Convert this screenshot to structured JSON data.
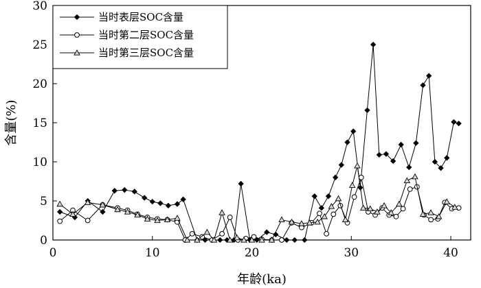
{
  "chart_data": {
    "type": "line",
    "xlabel": "年龄(ka)",
    "ylabel": "含量(%)",
    "xlim": [
      0,
      42
    ],
    "ylim": [
      0,
      30
    ],
    "xticks": [
      0,
      10,
      20,
      30,
      40
    ],
    "yticks": [
      0,
      5,
      10,
      15,
      20,
      25,
      30
    ],
    "legend_position": "top-left",
    "series": [
      {
        "name": "当时表层SOC含量",
        "marker": "filled-diamond",
        "x": [
          0.7,
          2.2,
          3.5,
          5.0,
          6.2,
          7.2,
          8.2,
          9.2,
          10.0,
          10.8,
          11.6,
          12.5,
          13.1,
          14.5,
          15.3,
          16.0,
          16.8,
          17.5,
          18.2,
          18.9,
          19.8,
          20.5,
          21.5,
          22.4,
          23.5,
          24.3,
          25.3,
          26.3,
          27.0,
          27.7,
          28.4,
          29.0,
          29.6,
          30.2,
          30.9,
          31.6,
          32.2,
          32.8,
          33.5,
          34.2,
          35.0,
          35.8,
          36.5,
          37.2,
          37.8,
          38.4,
          39.0,
          39.6,
          40.3,
          40.8
        ],
        "values": [
          3.6,
          2.9,
          5.0,
          3.6,
          6.3,
          6.4,
          6.2,
          5.4,
          4.9,
          4.7,
          4.4,
          4.6,
          5.2,
          0.0,
          0.0,
          0.0,
          0.0,
          0.0,
          0.0,
          7.2,
          0.0,
          0.0,
          1.0,
          0.7,
          0.0,
          0.0,
          0.0,
          5.6,
          4.1,
          5.6,
          8.0,
          9.6,
          12.5,
          13.9,
          6.7,
          16.6,
          25.0,
          10.9,
          11.0,
          10.1,
          12.2,
          9.3,
          12.4,
          19.8,
          21.0,
          10.0,
          9.2,
          10.5,
          15.1,
          14.9
        ]
      },
      {
        "name": "当时第二层SOC含量",
        "marker": "open-circle",
        "x": [
          0.7,
          2.0,
          3.5,
          5.0,
          6.5,
          7.5,
          8.5,
          9.5,
          10.5,
          11.5,
          12.5,
          13.3,
          14.0,
          15.0,
          16.0,
          17.0,
          17.8,
          18.6,
          19.4,
          20.2,
          21.0,
          22.0,
          23.0,
          24.0,
          25.0,
          26.0,
          26.8,
          27.5,
          28.2,
          28.9,
          29.6,
          30.3,
          31.0,
          31.7,
          32.4,
          33.1,
          33.8,
          34.5,
          35.2,
          35.9,
          36.6,
          37.3,
          38.0,
          38.7,
          39.4,
          40.1,
          40.8
        ],
        "values": [
          2.4,
          3.8,
          2.5,
          4.5,
          4.1,
          3.8,
          3.3,
          2.9,
          2.7,
          2.6,
          2.3,
          0.0,
          0.8,
          0.4,
          0.0,
          0.8,
          2.9,
          0.0,
          0.2,
          0.4,
          0.1,
          0.0,
          0.0,
          2.2,
          1.6,
          2.2,
          3.4,
          0.8,
          3.3,
          4.4,
          2.2,
          5.5,
          8.0,
          3.6,
          3.2,
          4.1,
          3.2,
          3.0,
          4.0,
          6.5,
          6.8,
          3.2,
          2.6,
          2.7,
          4.8,
          4.0,
          4.1
        ]
      },
      {
        "name": "当时第三层SOC含量",
        "marker": "open-triangle",
        "x": [
          0.7,
          2.0,
          3.5,
          5.0,
          6.5,
          7.5,
          8.5,
          9.5,
          10.5,
          11.5,
          12.5,
          13.5,
          14.5,
          15.5,
          16.2,
          17.0,
          17.8,
          18.5,
          19.2,
          20.0,
          21.0,
          22.0,
          23.0,
          24.0,
          25.0,
          25.8,
          26.6,
          27.3,
          28.0,
          28.7,
          29.4,
          30.1,
          30.6,
          31.2,
          31.9,
          32.6,
          33.3,
          34.0,
          34.8,
          35.6,
          36.4,
          37.2,
          38.0,
          38.8,
          39.6,
          40.4
        ],
        "values": [
          4.6,
          3.3,
          4.8,
          4.5,
          3.9,
          3.6,
          3.2,
          2.7,
          2.5,
          2.6,
          2.8,
          0.0,
          0.0,
          1.0,
          0.0,
          3.5,
          0.0,
          0.3,
          0.0,
          0.0,
          0.0,
          0.0,
          2.6,
          2.3,
          2.1,
          2.2,
          2.3,
          3.0,
          4.3,
          5.3,
          2.6,
          7.0,
          9.5,
          4.1,
          4.0,
          3.6,
          4.4,
          3.5,
          4.6,
          7.6,
          8.1,
          3.3,
          3.5,
          3.0,
          4.9,
          4.2
        ]
      }
    ]
  },
  "colors": {
    "line": "#000000",
    "open_marker_fill": "#ffffff",
    "background": "#ffffff"
  }
}
